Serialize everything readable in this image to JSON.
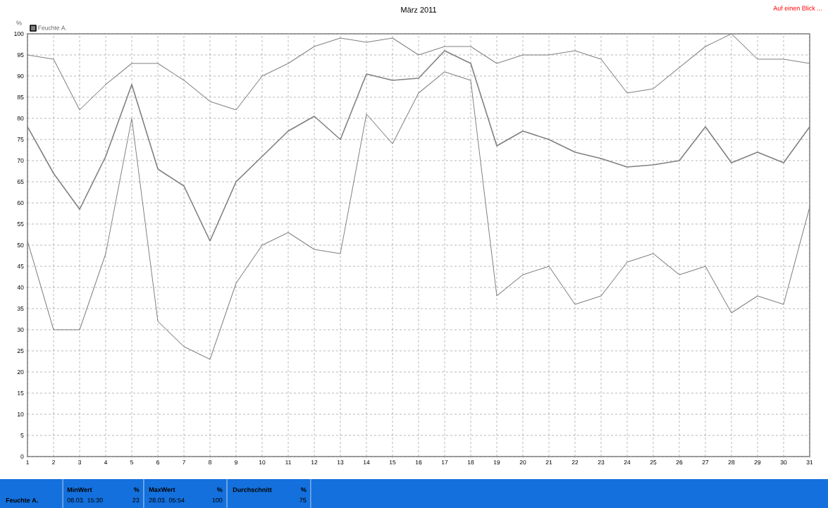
{
  "chart_data": {
    "type": "line",
    "title": "März 2011",
    "ylabel": "%",
    "x": [
      1,
      2,
      3,
      4,
      5,
      6,
      7,
      8,
      9,
      10,
      11,
      12,
      13,
      14,
      15,
      16,
      17,
      18,
      19,
      20,
      21,
      22,
      23,
      24,
      25,
      26,
      27,
      28,
      29,
      30,
      31
    ],
    "series": [
      {
        "color": "#808080",
        "values": [
          95,
          94,
          82,
          88,
          93,
          93,
          89,
          84,
          82,
          90,
          93,
          97,
          99,
          98,
          99,
          95,
          97,
          97,
          93,
          95,
          95,
          96,
          94,
          86,
          87,
          92,
          97,
          100,
          94,
          94,
          93
        ]
      },
      {
        "name": "Feuchte A.",
        "color": "#808080",
        "values": [
          78,
          67,
          58.5,
          71,
          88,
          68,
          64,
          51,
          65,
          71,
          77,
          80.5,
          75,
          90.5,
          89,
          89.5,
          96,
          93,
          73.5,
          77,
          75,
          72,
          70.5,
          68.5,
          69,
          70,
          78,
          69.5,
          72,
          69.5,
          78
        ]
      },
      {
        "color": "#808080",
        "values": [
          51,
          30,
          30,
          48,
          80,
          32,
          26,
          23,
          41,
          50,
          53,
          49,
          48,
          81,
          74,
          86,
          91,
          89,
          38,
          43,
          45,
          36,
          38,
          46,
          48,
          43,
          45,
          34,
          38,
          36,
          59
        ]
      }
    ],
    "xlim": [
      1,
      31
    ],
    "xticks": [
      1,
      2,
      3,
      4,
      5,
      6,
      7,
      8,
      9,
      10,
      11,
      12,
      13,
      14,
      15,
      16,
      17,
      18,
      19,
      20,
      21,
      22,
      23,
      24,
      25,
      26,
      27,
      28,
      29,
      30,
      31
    ],
    "ylim": [
      0,
      100
    ],
    "yticks": [
      0,
      5,
      10,
      15,
      20,
      25,
      30,
      35,
      40,
      45,
      50,
      55,
      60,
      65,
      70,
      75,
      80,
      85,
      90,
      95,
      100
    ],
    "grid": true,
    "legend": "top left",
    "marker": "none",
    "line_style": "solid",
    "annotations": [
      "Auf einen Blick ...",
      "Feuchte A.",
      "MinWert",
      "%",
      "08.03.  15:30",
      "23",
      "MaxWert",
      "%",
      "28.03.  05:54",
      "100",
      "Durchschnitt",
      "%",
      "75"
    ]
  }
}
